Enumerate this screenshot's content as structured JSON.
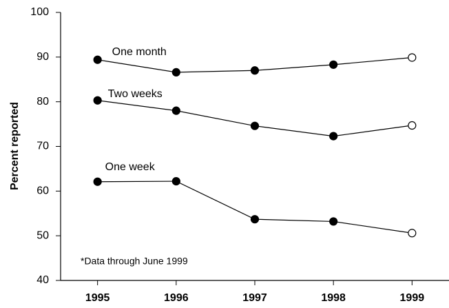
{
  "chart_data": {
    "type": "line",
    "x": [
      1995,
      1996,
      1997,
      1998,
      1999
    ],
    "series": [
      {
        "name": "One month",
        "color": "#000000",
        "values": [
          89.4,
          86.6,
          87.0,
          88.3,
          89.9
        ],
        "markers": [
          "filled",
          "filled",
          "filled",
          "filled",
          "open"
        ]
      },
      {
        "name": "Two weeks",
        "color": "#000000",
        "values": [
          80.3,
          78.0,
          74.6,
          72.3,
          74.7
        ],
        "markers": [
          "filled",
          "filled",
          "filled",
          "filled",
          "open"
        ]
      },
      {
        "name": "One week",
        "color": "#000000",
        "values": [
          62.1,
          62.2,
          53.7,
          53.2,
          50.6
        ],
        "markers": [
          "filled",
          "filled",
          "filled",
          "filled",
          "open"
        ]
      }
    ],
    "ylabel": "Percent reported",
    "annotation": "*Data through June 1999",
    "xlim": [
      1994.53,
      1999.47
    ],
    "xticks": [
      1995,
      1996,
      1997,
      1998,
      1999
    ],
    "ylim": [
      40,
      100
    ],
    "yticks": [
      40,
      50,
      60,
      70,
      80,
      90,
      100
    ],
    "grid": false
  }
}
